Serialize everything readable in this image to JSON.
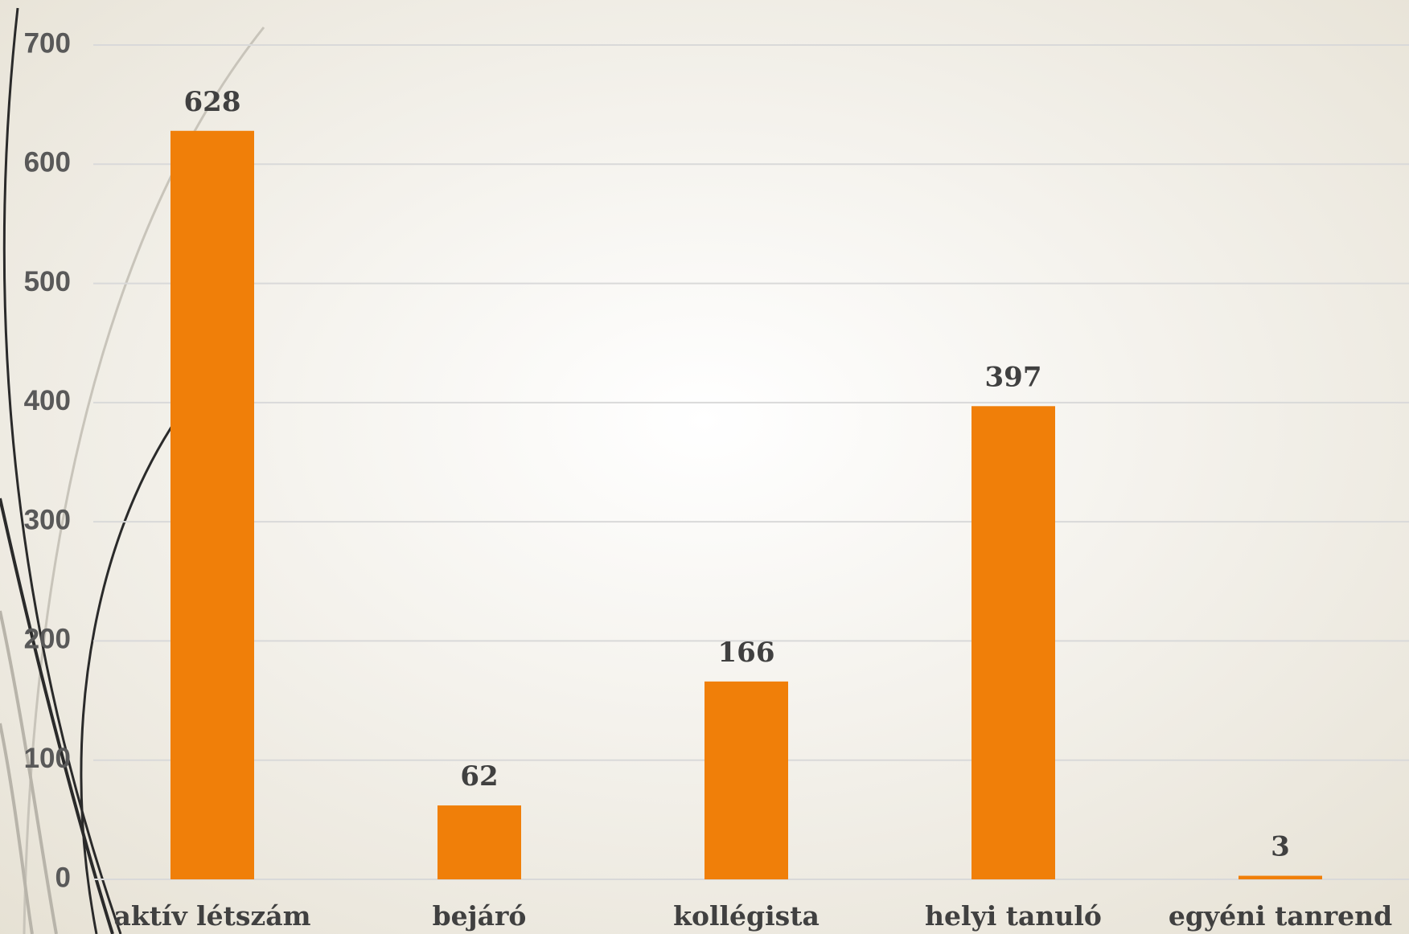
{
  "chart_data": {
    "type": "bar",
    "categories": [
      "aktív létszám",
      "bejáró",
      "kollégista",
      "helyi tanuló",
      "egyéni tanrend"
    ],
    "values": [
      628,
      62,
      166,
      397,
      3
    ],
    "color": "#f07f09",
    "ylim": [
      0,
      700
    ],
    "yticks": [
      0,
      100,
      200,
      300,
      400,
      500,
      600,
      700
    ],
    "grid": true
  }
}
